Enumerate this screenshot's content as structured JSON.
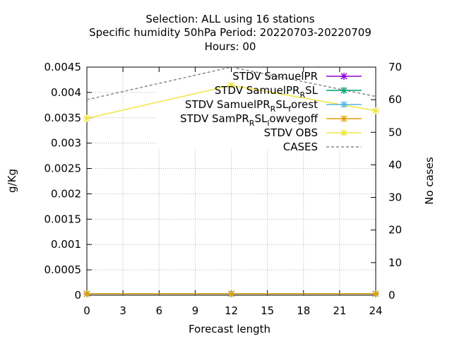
{
  "chart_data": {
    "type": "line",
    "title_lines": [
      "Selection: ALL using    16 stations",
      "Specific humidity 50hPa   Period: 20220703-20220709",
      "Hours:  00"
    ],
    "xlabel": "Forecast length",
    "ylabel": "g/Kg",
    "y2label": "No cases",
    "xlim": [
      0,
      24
    ],
    "ylim": [
      0,
      0.0045
    ],
    "y2lim": [
      0,
      70
    ],
    "x_ticks": [
      0,
      3,
      6,
      9,
      12,
      15,
      18,
      21,
      24
    ],
    "y_ticks": [
      "0",
      "0.0005",
      "0.001",
      "0.0015",
      "0.002",
      "0.0025",
      "0.003",
      "0.0035",
      "0.004",
      "0.0045"
    ],
    "y2_ticks": [
      0,
      10,
      20,
      30,
      40,
      50,
      60,
      70
    ],
    "grid": true,
    "legend_position": "top-right",
    "series": [
      {
        "label_main": "STDV SamuelPR",
        "label_parts": [],
        "color": "#9400d3",
        "marker": "x",
        "axis": "y",
        "x": [
          0,
          12,
          24
        ],
        "y": [
          3e-05,
          3e-05,
          3e-05
        ]
      },
      {
        "label_main": "STDV SamuelPR",
        "label_parts": [
          {
            "t": "R",
            "sub": true
          },
          {
            "t": "SL",
            "sub": false
          }
        ],
        "color": "#009e73",
        "marker": "x",
        "axis": "y",
        "x": [
          0,
          12,
          24
        ],
        "y": [
          3e-05,
          3e-05,
          3e-05
        ]
      },
      {
        "label_main": "STDV SamuelPR",
        "label_parts": [
          {
            "t": "R",
            "sub": true
          },
          {
            "t": "SL",
            "sub": false
          },
          {
            "t": "f",
            "sub": true
          },
          {
            "t": "orest",
            "sub": false
          }
        ],
        "color": "#56b4e9",
        "marker": "x",
        "axis": "y",
        "x": [
          0,
          12,
          24
        ],
        "y": [
          3e-05,
          3e-05,
          3e-05
        ]
      },
      {
        "label_main": "STDV SamPR",
        "label_parts": [
          {
            "t": "R",
            "sub": true
          },
          {
            "t": "SL",
            "sub": false
          },
          {
            "t": "l",
            "sub": true
          },
          {
            "t": "owvegoff",
            "sub": false
          }
        ],
        "color": "#e69f00",
        "marker": "x",
        "axis": "y",
        "x": [
          0,
          12,
          24
        ],
        "y": [
          3e-05,
          3e-05,
          3e-05
        ]
      },
      {
        "label_main": "STDV OBS",
        "label_parts": [],
        "color": "#f0e442",
        "marker": "x",
        "axis": "y",
        "x": [
          0,
          12,
          24
        ],
        "y": [
          0.00349,
          0.00414,
          0.00364
        ]
      },
      {
        "label_main": "CASES",
        "label_parts": [],
        "color": "#888888",
        "marker": "none",
        "dashed": true,
        "axis": "y2",
        "x": [
          0,
          12,
          24
        ],
        "y": [
          60,
          70,
          61
        ]
      }
    ]
  }
}
